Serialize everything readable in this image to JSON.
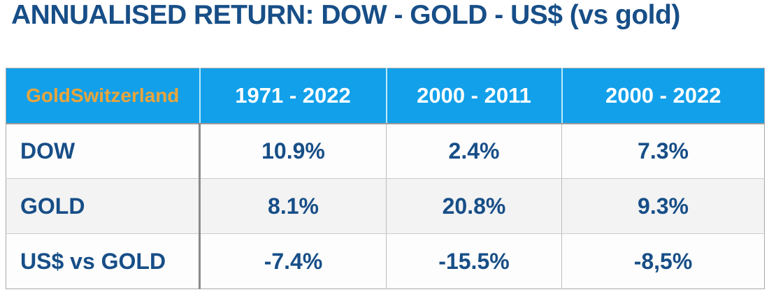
{
  "title": "ANNUALISED RETURN: DOW - GOLD - US$ (vs gold)",
  "table": {
    "brand": "GoldSwitzerland",
    "columns": [
      "1971 - 2022",
      "2000 - 2011",
      "2000 - 2022"
    ],
    "rows": [
      {
        "label": "DOW",
        "values": [
          "10.9%",
          "2.4%",
          "7.3%"
        ]
      },
      {
        "label": "GOLD",
        "values": [
          "8.1%",
          "20.8%",
          "9.3%"
        ]
      },
      {
        "label": "US$ vs GOLD",
        "values": [
          "-7.4%",
          "-15.5%",
          "-8,5%"
        ]
      }
    ]
  },
  "colors": {
    "navy": "#174E87",
    "header-blue": "#12A0EA",
    "gold": "#E8A53C",
    "row-alt": "#F3F3F3",
    "row-plain": "#FDFDFD"
  },
  "chart_data": {
    "type": "table",
    "title": "ANNUALISED RETURN: DOW - GOLD - US$ (vs gold)",
    "source_brand": "GoldSwitzerland",
    "columns": [
      "1971 - 2022",
      "2000 - 2011",
      "2000 - 2022"
    ],
    "row_labels": [
      "DOW",
      "GOLD",
      "US$ vs GOLD"
    ],
    "values_percent": [
      [
        10.9,
        2.4,
        7.3
      ],
      [
        8.1,
        20.8,
        9.3
      ],
      [
        -7.4,
        -15.5,
        -8.5
      ]
    ],
    "unit": "%"
  }
}
